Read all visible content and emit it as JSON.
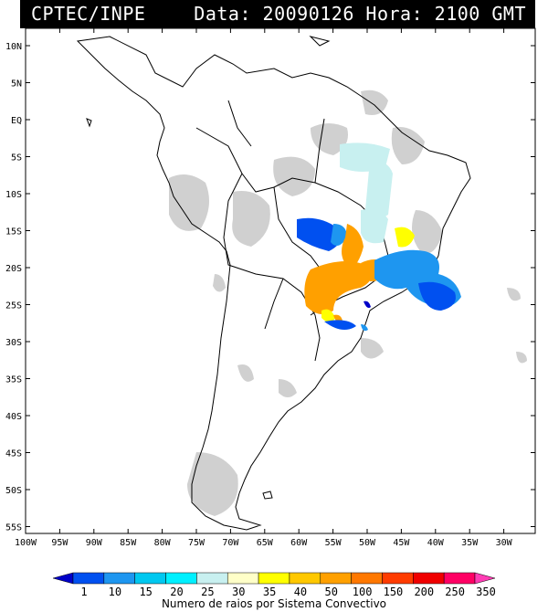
{
  "header": {
    "source": "CPTEC/INPE",
    "datetime": "Data: 20090126 Hora: 2100 GMT"
  },
  "map": {
    "lat_labels": [
      "10N",
      "5N",
      "EQ",
      "5S",
      "10S",
      "15S",
      "20S",
      "25S",
      "30S",
      "35S",
      "40S",
      "45S",
      "50S",
      "55S"
    ],
    "lon_labels": [
      "100W",
      "95W",
      "90W",
      "85W",
      "80W",
      "75W",
      "70W",
      "65W",
      "60W",
      "55W",
      "50W",
      "45W",
      "40W",
      "35W",
      "30W"
    ]
  },
  "legend": {
    "title": "Numero de raios por Sistema Convectivo",
    "labels": [
      "1",
      "10",
      "15",
      "20",
      "25",
      "30",
      "35",
      "40",
      "50",
      "100",
      "150",
      "200",
      "250",
      "350"
    ],
    "colors": [
      "#0000c8",
      "#0050f0",
      "#1e96f0",
      "#00c8f0",
      "#00f0ff",
      "#c8f0f0",
      "#ffffc8",
      "#ffff00",
      "#ffc800",
      "#ffa000",
      "#ff7800",
      "#ff3c00",
      "#f00000",
      "#ff0064",
      "#ff3cb4"
    ]
  }
}
